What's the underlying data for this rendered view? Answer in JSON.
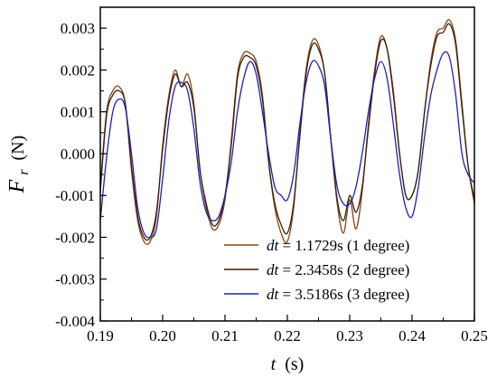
{
  "chart_data": {
    "type": "line",
    "xlabel_var": "t",
    "xlabel_unit": "(s)",
    "ylabel_var": "F",
    "ylabel_sub": "r",
    "ylabel_unit": "(N)",
    "xlim": [
      0.19,
      0.25
    ],
    "ylim": [
      -0.004,
      0.0035
    ],
    "xticks": [
      0.19,
      0.2,
      0.21,
      0.22,
      0.23,
      0.24,
      0.25
    ],
    "xtick_labels": [
      "0.19",
      "0.20",
      "0.21",
      "0.22",
      "0.23",
      "0.24",
      "0.25"
    ],
    "yticks": [
      -0.004,
      -0.003,
      -0.002,
      -0.001,
      0.0,
      0.001,
      0.002,
      0.003
    ],
    "ytick_labels": [
      "-0.004",
      "-0.003",
      "-0.002",
      "-0.001",
      "0.000",
      "0.001",
      "0.002",
      "0.003"
    ],
    "grid": false,
    "legend_position": "bottom-right",
    "series": [
      {
        "name_var": "dt",
        "name_rest": " = 1.1729s (1 degree)",
        "color": "#8B4513",
        "points": [
          [
            0.19,
            -0.0008
          ],
          [
            0.191,
            0.001
          ],
          [
            0.192,
            0.0015
          ],
          [
            0.193,
            0.0016
          ],
          [
            0.194,
            0.0012
          ],
          [
            0.195,
            -0.0004
          ],
          [
            0.196,
            -0.0016
          ],
          [
            0.197,
            -0.0021
          ],
          [
            0.198,
            -0.0021
          ],
          [
            0.199,
            -0.0015
          ],
          [
            0.2,
            0.0002
          ],
          [
            0.201,
            0.0014
          ],
          [
            0.202,
            0.002
          ],
          [
            0.203,
            0.0016
          ],
          [
            0.204,
            0.0019
          ],
          [
            0.205,
            0.0012
          ],
          [
            0.206,
            -0.0004
          ],
          [
            0.207,
            -0.0013
          ],
          [
            0.208,
            -0.0018
          ],
          [
            0.209,
            -0.0017
          ],
          [
            0.21,
            -0.0011
          ],
          [
            0.211,
            0.0003
          ],
          [
            0.212,
            0.0019
          ],
          [
            0.213,
            0.0024
          ],
          [
            0.214,
            0.0024
          ],
          [
            0.215,
            0.0022
          ],
          [
            0.216,
            0.0014
          ],
          [
            0.217,
            -0.0002
          ],
          [
            0.218,
            -0.0013
          ],
          [
            0.219,
            -0.0019
          ],
          [
            0.22,
            -0.0021
          ],
          [
            0.221,
            -0.0013
          ],
          [
            0.222,
            0.0005
          ],
          [
            0.223,
            0.002
          ],
          [
            0.224,
            0.0027
          ],
          [
            0.225,
            0.0026
          ],
          [
            0.226,
            0.0019
          ],
          [
            0.227,
            0.0003
          ],
          [
            0.228,
            -0.0012
          ],
          [
            0.229,
            -0.0019
          ],
          [
            0.23,
            -0.0011
          ],
          [
            0.231,
            -0.0018
          ],
          [
            0.232,
            -0.0009
          ],
          [
            0.233,
            0.0007
          ],
          [
            0.234,
            0.002
          ],
          [
            0.235,
            0.0028
          ],
          [
            0.236,
            0.0025
          ],
          [
            0.237,
            0.0015
          ],
          [
            0.238,
            0.0
          ],
          [
            0.239,
            -0.001
          ],
          [
            0.24,
            -0.001
          ],
          [
            0.241,
            -0.0004
          ],
          [
            0.242,
            0.001
          ],
          [
            0.243,
            0.0022
          ],
          [
            0.244,
            0.0029
          ],
          [
            0.245,
            0.003
          ],
          [
            0.246,
            0.0032
          ],
          [
            0.247,
            0.0027
          ],
          [
            0.248,
            0.0012
          ],
          [
            0.249,
            -0.0003
          ],
          [
            0.25,
            -0.0012
          ]
        ]
      },
      {
        "name_var": "dt",
        "name_rest": " = 2.3458s (2 degree)",
        "color": "#3a1f0e",
        "points": [
          [
            0.19,
            -0.0009
          ],
          [
            0.191,
            0.0009
          ],
          [
            0.192,
            0.0014
          ],
          [
            0.193,
            0.0015
          ],
          [
            0.194,
            0.0012
          ],
          [
            0.195,
            -0.0003
          ],
          [
            0.196,
            -0.0015
          ],
          [
            0.197,
            -0.002
          ],
          [
            0.198,
            -0.002
          ],
          [
            0.199,
            -0.0014
          ],
          [
            0.2,
            0.0001
          ],
          [
            0.201,
            0.0013
          ],
          [
            0.202,
            0.0019
          ],
          [
            0.203,
            0.0016
          ],
          [
            0.204,
            0.0017
          ],
          [
            0.205,
            0.0011
          ],
          [
            0.206,
            -0.0004
          ],
          [
            0.207,
            -0.0012
          ],
          [
            0.208,
            -0.0017
          ],
          [
            0.209,
            -0.0016
          ],
          [
            0.21,
            -0.001
          ],
          [
            0.211,
            0.0002
          ],
          [
            0.212,
            0.0018
          ],
          [
            0.213,
            0.0023
          ],
          [
            0.214,
            0.0023
          ],
          [
            0.215,
            0.0021
          ],
          [
            0.216,
            0.0013
          ],
          [
            0.217,
            -0.0002
          ],
          [
            0.218,
            -0.0012
          ],
          [
            0.219,
            -0.0017
          ],
          [
            0.22,
            -0.0019
          ],
          [
            0.221,
            -0.0012
          ],
          [
            0.222,
            0.0004
          ],
          [
            0.223,
            0.0019
          ],
          [
            0.224,
            0.0026
          ],
          [
            0.225,
            0.0025
          ],
          [
            0.226,
            0.0019
          ],
          [
            0.227,
            0.0003
          ],
          [
            0.228,
            -0.0011
          ],
          [
            0.229,
            -0.0016
          ],
          [
            0.23,
            -0.001
          ],
          [
            0.231,
            -0.0014
          ],
          [
            0.232,
            -0.0008
          ],
          [
            0.233,
            0.0006
          ],
          [
            0.234,
            0.0019
          ],
          [
            0.235,
            0.0027
          ],
          [
            0.236,
            0.0025
          ],
          [
            0.237,
            0.0014
          ],
          [
            0.238,
            0.0
          ],
          [
            0.239,
            -0.001
          ],
          [
            0.24,
            -0.001
          ],
          [
            0.241,
            -0.0004
          ],
          [
            0.242,
            0.001
          ],
          [
            0.243,
            0.0021
          ],
          [
            0.244,
            0.0028
          ],
          [
            0.245,
            0.0029
          ],
          [
            0.246,
            0.0031
          ],
          [
            0.247,
            0.0026
          ],
          [
            0.248,
            0.0011
          ],
          [
            0.249,
            -0.0003
          ],
          [
            0.25,
            -0.0011
          ]
        ]
      },
      {
        "name_var": "dt",
        "name_rest": " = 3.5186s (3 degree)",
        "color": "#1f1fb4",
        "points": [
          [
            0.19,
            -0.0016
          ],
          [
            0.191,
            -0.0001
          ],
          [
            0.192,
            0.001
          ],
          [
            0.193,
            0.0013
          ],
          [
            0.194,
            0.0011
          ],
          [
            0.195,
            0.0
          ],
          [
            0.196,
            -0.0013
          ],
          [
            0.197,
            -0.0019
          ],
          [
            0.198,
            -0.002
          ],
          [
            0.199,
            -0.0018
          ],
          [
            0.2,
            -0.0006
          ],
          [
            0.201,
            0.0008
          ],
          [
            0.202,
            0.0016
          ],
          [
            0.203,
            0.0017
          ],
          [
            0.204,
            0.0015
          ],
          [
            0.205,
            0.0006
          ],
          [
            0.206,
            -0.0007
          ],
          [
            0.207,
            -0.0014
          ],
          [
            0.208,
            -0.0016
          ],
          [
            0.209,
            -0.0015
          ],
          [
            0.21,
            -0.001
          ],
          [
            0.211,
            -0.0002
          ],
          [
            0.212,
            0.001
          ],
          [
            0.213,
            0.0018
          ],
          [
            0.214,
            0.0022
          ],
          [
            0.215,
            0.0019
          ],
          [
            0.216,
            0.001
          ],
          [
            0.217,
            0.0
          ],
          [
            0.218,
            -0.0008
          ],
          [
            0.219,
            -0.001
          ],
          [
            0.22,
            -0.0011
          ],
          [
            0.221,
            -0.0005
          ],
          [
            0.222,
            0.0007
          ],
          [
            0.223,
            0.0017
          ],
          [
            0.224,
            0.0022
          ],
          [
            0.225,
            0.0021
          ],
          [
            0.226,
            0.0016
          ],
          [
            0.227,
            0.0003
          ],
          [
            0.228,
            -0.0008
          ],
          [
            0.229,
            -0.0012
          ],
          [
            0.23,
            -0.0012
          ],
          [
            0.231,
            -0.0008
          ],
          [
            0.232,
            0.0
          ],
          [
            0.233,
            0.001
          ],
          [
            0.234,
            0.0018
          ],
          [
            0.235,
            0.0022
          ],
          [
            0.236,
            0.0018
          ],
          [
            0.237,
            0.0007
          ],
          [
            0.238,
            -0.0005
          ],
          [
            0.239,
            -0.0013
          ],
          [
            0.24,
            -0.0015
          ],
          [
            0.241,
            -0.0008
          ],
          [
            0.242,
            0.0004
          ],
          [
            0.243,
            0.0014
          ],
          [
            0.244,
            0.002
          ],
          [
            0.245,
            0.0024
          ],
          [
            0.246,
            0.0023
          ],
          [
            0.247,
            0.0014
          ],
          [
            0.248,
            0.0
          ],
          [
            0.249,
            -0.0005
          ],
          [
            0.25,
            -0.0007
          ]
        ]
      }
    ]
  }
}
